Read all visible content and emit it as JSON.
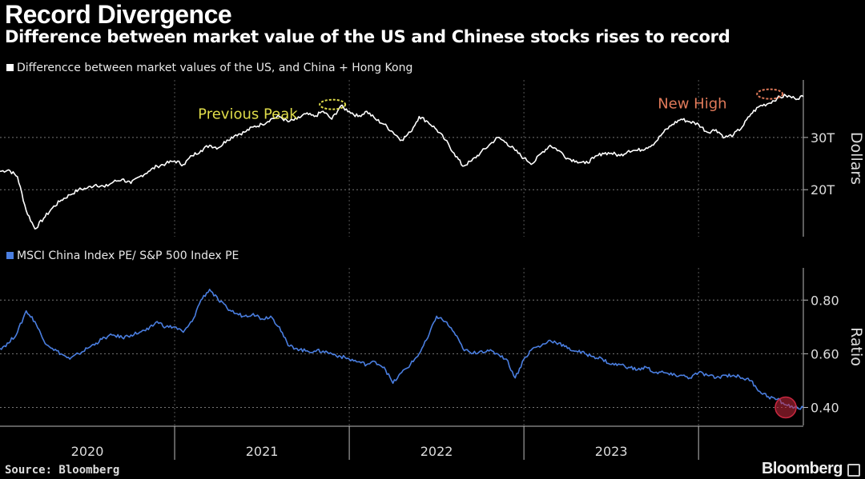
{
  "header": {
    "title": "Record Divergence",
    "subtitle": "Difference between market value of the US and Chinese stocks rises to record"
  },
  "footer": {
    "source": "Source: Bloomberg",
    "brand": "Bloomberg"
  },
  "chart_data": [
    {
      "type": "line",
      "panel": "top",
      "legend": "Differencce between market values of the US, and China + Hong Kong",
      "ylabel": "Dollars",
      "ylim": [
        11,
        41
      ],
      "yticks": [
        {
          "value": 20,
          "label": "20T"
        },
        {
          "value": 30,
          "label": "30T"
        }
      ],
      "series_color": "#ffffff",
      "x": [
        2019.5,
        2019.55,
        2019.6,
        2019.65,
        2019.7,
        2019.75,
        2019.8,
        2019.85,
        2019.9,
        2019.95,
        2020.0,
        2020.05,
        2020.1,
        2020.15,
        2020.2,
        2020.25,
        2020.3,
        2020.35,
        2020.4,
        2020.45,
        2020.5,
        2020.55,
        2020.6,
        2020.65,
        2020.7,
        2020.75,
        2020.8,
        2020.85,
        2020.9,
        2020.95,
        2021.0,
        2021.05,
        2021.1,
        2021.15,
        2021.2,
        2021.25,
        2021.3,
        2021.35,
        2021.4,
        2021.45,
        2021.5,
        2021.55,
        2021.6,
        2021.65,
        2021.7,
        2021.75,
        2021.8,
        2021.85,
        2021.9,
        2021.95,
        2022.0,
        2022.05,
        2022.1,
        2022.15,
        2022.2,
        2022.25,
        2022.3,
        2022.35,
        2022.4,
        2022.45,
        2022.5,
        2022.55,
        2022.6,
        2022.65,
        2022.7,
        2022.75,
        2022.8,
        2022.85,
        2022.9,
        2022.95,
        2023.0,
        2023.05,
        2023.1,
        2023.15,
        2023.2,
        2023.25,
        2023.3,
        2023.35,
        2023.4,
        2023.45,
        2023.5,
        2023.55,
        2023.6,
        2023.65,
        2023.7,
        2023.75,
        2023.8,
        2023.85,
        2023.9,
        2023.95,
        2024.0,
        2024.05,
        2024.1
      ],
      "values": [
        23.5,
        23.8,
        22.5,
        16.0,
        12.5,
        14.5,
        16.5,
        18.0,
        19.0,
        20.0,
        20.3,
        21.0,
        20.5,
        21.5,
        22.0,
        21.2,
        22.5,
        23.5,
        24.5,
        25.0,
        25.5,
        24.8,
        26.5,
        27.5,
        28.5,
        28.0,
        29.5,
        30.5,
        31.0,
        32.0,
        32.5,
        33.5,
        34.0,
        33.0,
        33.5,
        34.5,
        34.0,
        35.0,
        33.5,
        36.0,
        35.0,
        34.0,
        35.0,
        33.5,
        32.5,
        31.0,
        29.5,
        31.0,
        34.0,
        33.0,
        31.5,
        29.5,
        27.0,
        24.5,
        25.5,
        27.0,
        28.5,
        30.0,
        29.0,
        27.5,
        26.0,
        25.0,
        27.0,
        28.5,
        27.5,
        26.0,
        25.5,
        25.0,
        26.0,
        27.0,
        27.0,
        26.5,
        27.5,
        27.5,
        28.0,
        29.0,
        31.0,
        32.5,
        33.5,
        33.0,
        32.5,
        31.0,
        31.5,
        30.0,
        30.5,
        32.0,
        34.5,
        36.0,
        36.5,
        37.5,
        38.0,
        37.5,
        37.8
      ],
      "annotations": [
        {
          "text": "Previous Peak",
          "x": 2021.45,
          "y": 36.0,
          "color": "#e0dd4a"
        },
        {
          "text": "New High",
          "x": 2024.0,
          "y": 38.0,
          "color": "#e07a5a"
        }
      ]
    },
    {
      "type": "line",
      "panel": "bottom",
      "legend": "MSCI China Index PE/ S&P 500 Index PE",
      "ylabel": "Ratio",
      "ylim": [
        0.333,
        0.92
      ],
      "yticks": [
        {
          "value": 0.4,
          "label": "0.40"
        },
        {
          "value": 0.6,
          "label": "0.60"
        },
        {
          "value": 0.8,
          "label": "0.80"
        }
      ],
      "series_color": "#4a7ee0",
      "x": [
        2019.5,
        2019.55,
        2019.6,
        2019.65,
        2019.7,
        2019.75,
        2019.8,
        2019.85,
        2019.9,
        2019.95,
        2020.0,
        2020.05,
        2020.1,
        2020.15,
        2020.2,
        2020.25,
        2020.3,
        2020.35,
        2020.4,
        2020.45,
        2020.5,
        2020.55,
        2020.6,
        2020.65,
        2020.7,
        2020.75,
        2020.8,
        2020.85,
        2020.9,
        2020.95,
        2021.0,
        2021.05,
        2021.1,
        2021.15,
        2021.2,
        2021.25,
        2021.3,
        2021.35,
        2021.4,
        2021.45,
        2021.5,
        2021.55,
        2021.6,
        2021.65,
        2021.7,
        2021.75,
        2021.8,
        2021.85,
        2021.9,
        2021.95,
        2022.0,
        2022.05,
        2022.1,
        2022.15,
        2022.2,
        2022.25,
        2022.3,
        2022.35,
        2022.4,
        2022.45,
        2022.5,
        2022.55,
        2022.6,
        2022.65,
        2022.7,
        2022.75,
        2022.8,
        2022.85,
        2022.9,
        2022.95,
        2023.0,
        2023.05,
        2023.1,
        2023.15,
        2023.2,
        2023.25,
        2023.3,
        2023.35,
        2023.4,
        2023.45,
        2023.5,
        2023.55,
        2023.6,
        2023.65,
        2023.7,
        2023.75,
        2023.8,
        2023.85,
        2023.9,
        2023.95,
        2024.0,
        2024.05,
        2024.1
      ],
      "values": [
        0.62,
        0.64,
        0.68,
        0.76,
        0.72,
        0.65,
        0.62,
        0.6,
        0.58,
        0.6,
        0.62,
        0.64,
        0.66,
        0.67,
        0.66,
        0.67,
        0.68,
        0.69,
        0.72,
        0.7,
        0.7,
        0.68,
        0.72,
        0.8,
        0.84,
        0.8,
        0.77,
        0.75,
        0.74,
        0.75,
        0.73,
        0.74,
        0.7,
        0.63,
        0.62,
        0.61,
        0.61,
        0.61,
        0.6,
        0.59,
        0.58,
        0.57,
        0.56,
        0.57,
        0.55,
        0.49,
        0.53,
        0.56,
        0.6,
        0.66,
        0.74,
        0.72,
        0.68,
        0.62,
        0.6,
        0.61,
        0.61,
        0.6,
        0.58,
        0.51,
        0.58,
        0.62,
        0.63,
        0.65,
        0.64,
        0.62,
        0.61,
        0.6,
        0.59,
        0.58,
        0.56,
        0.56,
        0.55,
        0.54,
        0.55,
        0.53,
        0.53,
        0.52,
        0.52,
        0.51,
        0.53,
        0.52,
        0.51,
        0.52,
        0.52,
        0.51,
        0.5,
        0.46,
        0.44,
        0.43,
        0.41,
        0.4,
        0.4
      ],
      "annotations": []
    }
  ],
  "x_axis": {
    "range": [
      2019.5,
      2024.1
    ],
    "year_labels": [
      {
        "label": "2020",
        "x": 2020.0
      },
      {
        "label": "2021",
        "x": 2021.0
      },
      {
        "label": "2022",
        "x": 2022.0
      },
      {
        "label": "2023",
        "x": 2023.0
      }
    ],
    "year_boundaries": [
      2020.5,
      2021.5,
      2022.5,
      2023.5
    ]
  }
}
